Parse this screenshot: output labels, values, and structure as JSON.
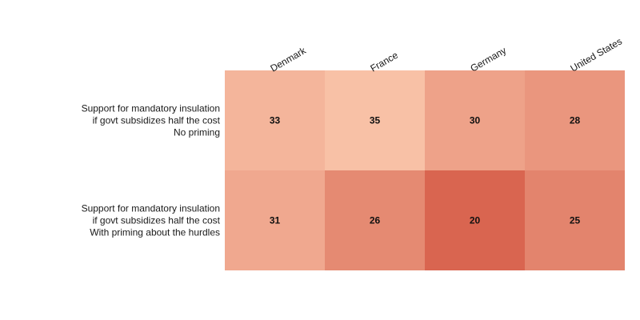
{
  "chart_data": {
    "type": "heatmap",
    "columns": [
      "Denmark",
      "France",
      "Germany",
      "United States"
    ],
    "rows": [
      {
        "label_lines": [
          "Support for mandatory insulation",
          "if govt subsidizes half the cost",
          "No priming"
        ],
        "values": [
          33,
          35,
          30,
          28
        ]
      },
      {
        "label_lines": [
          "Support for mandatory insulation",
          "if govt subsidizes half the cost",
          "With priming about the hurdles"
        ],
        "values": [
          31,
          26,
          20,
          25
        ]
      }
    ],
    "value_range": [
      20,
      35
    ],
    "color_scale": {
      "low": "#d96550",
      "high": "#f8c1a6"
    },
    "legend": "none",
    "grid": false
  }
}
